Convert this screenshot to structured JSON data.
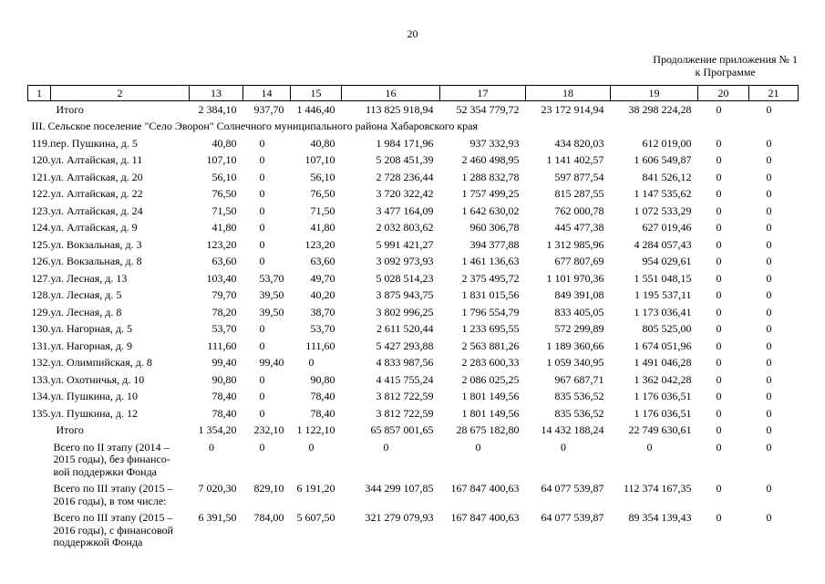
{
  "page": {
    "number": "20",
    "continuation_line1": "Продолжение приложения № 1",
    "continuation_line2": "к Программе"
  },
  "table": {
    "header": [
      "1",
      "2",
      "13",
      "14",
      "15",
      "16",
      "17",
      "18",
      "19",
      "20",
      "21"
    ],
    "rows": [
      {
        "type": "itogo",
        "label": "Итого",
        "values": [
          "2 384,10",
          "937,70",
          "1 446,40",
          "113 825 918,94",
          "52 354 779,72",
          "23 172 914,94",
          "38 298 224,28",
          "0",
          "0"
        ]
      },
      {
        "type": "section",
        "label": "III. Сельское поселение \"Село Эворон\" Солнечного муниципального района Хабаровского края"
      },
      {
        "type": "address",
        "label": "119.пер. Пушкина, д. 5",
        "values": [
          "40,80",
          "0",
          "40,80",
          "1 984 171,96",
          "937 332,93",
          "434 820,03",
          "612 019,00",
          "0",
          "0"
        ]
      },
      {
        "type": "address",
        "label": "120.ул. Алтайская, д. 11",
        "values": [
          "107,10",
          "0",
          "107,10",
          "5 208 451,39",
          "2 460 498,95",
          "1 141 402,57",
          "1 606 549,87",
          "0",
          "0"
        ]
      },
      {
        "type": "address",
        "label": "121.ул. Алтайская, д. 20",
        "values": [
          "56,10",
          "0",
          "56,10",
          "2 728 236,44",
          "1 288 832,78",
          "597 877,54",
          "841 526,12",
          "0",
          "0"
        ]
      },
      {
        "type": "address",
        "label": "122.ул. Алтайская, д. 22",
        "values": [
          "76,50",
          "0",
          "76,50",
          "3 720 322,42",
          "1 757 499,25",
          "815 287,55",
          "1 147 535,62",
          "0",
          "0"
        ]
      },
      {
        "type": "address",
        "label": "123.ул. Алтайская, д. 24",
        "values": [
          "71,50",
          "0",
          "71,50",
          "3 477 164,09",
          "1 642 630,02",
          "762 000,78",
          "1 072 533,29",
          "0",
          "0"
        ]
      },
      {
        "type": "address",
        "label": "124.ул. Алтайская, д. 9",
        "values": [
          "41,80",
          "0",
          "41,80",
          "2 032 803,62",
          "960 306,78",
          "445 477,38",
          "627 019,46",
          "0",
          "0"
        ]
      },
      {
        "type": "address",
        "label": "125.ул. Вокзальная, д. 3",
        "values": [
          "123,20",
          "0",
          "123,20",
          "5 991 421,27",
          "394 377,88",
          "1 312 985,96",
          "4 284 057,43",
          "0",
          "0"
        ]
      },
      {
        "type": "address",
        "label": "126.ул. Вокзальная, д. 8",
        "values": [
          "63,60",
          "0",
          "63,60",
          "3 092 973,93",
          "1 461 136,63",
          "677 807,69",
          "954 029,61",
          "0",
          "0"
        ]
      },
      {
        "type": "address",
        "label": "127.ул. Лесная, д. 13",
        "values": [
          "103,40",
          "53,70",
          "49,70",
          "5 028 514,23",
          "2 375 495,72",
          "1 101 970,36",
          "1 551 048,15",
          "0",
          "0"
        ]
      },
      {
        "type": "address",
        "label": "128.ул. Лесная, д. 5",
        "values": [
          "79,70",
          "39,50",
          "40,20",
          "3 875 943,75",
          "1 831 015,56",
          "849 391,08",
          "1 195 537,11",
          "0",
          "0"
        ]
      },
      {
        "type": "address",
        "label": "129.ул. Лесная, д. 8",
        "values": [
          "78,20",
          "39,50",
          "38,70",
          "3 802 996,25",
          "1 796 554,79",
          "833 405,05",
          "1 173 036,41",
          "0",
          "0"
        ]
      },
      {
        "type": "address",
        "label": "130.ул. Нагорная, д. 5",
        "values": [
          "53,70",
          "0",
          "53,70",
          "2 611 520,44",
          "1 233 695,55",
          "572 299,89",
          "805 525,00",
          "0",
          "0"
        ]
      },
      {
        "type": "address",
        "label": "131.ул. Нагорная, д. 9",
        "values": [
          "111,60",
          "0",
          "111,60",
          "5 427 293,88",
          "2 563 881,26",
          "1 189 360,66",
          "1 674 051,96",
          "0",
          "0"
        ]
      },
      {
        "type": "address",
        "label": "132.ул. Олимпийская, д. 8",
        "values": [
          "99,40",
          "99,40",
          "0",
          "4 833 987,56",
          "2 283 600,33",
          "1 059 340,95",
          "1 491 046,28",
          "0",
          "0"
        ]
      },
      {
        "type": "address",
        "label": "133.ул. Охотничья, д. 10",
        "values": [
          "90,80",
          "0",
          "90,80",
          "4 415 755,24",
          "2 086 025,25",
          "967 687,71",
          "1 362 042,28",
          "0",
          "0"
        ]
      },
      {
        "type": "address",
        "label": "134.ул. Пушкина, д. 10",
        "values": [
          "78,40",
          "0",
          "78,40",
          "3 812 722,59",
          "1 801 149,56",
          "835 536,52",
          "1 176 036,51",
          "0",
          "0"
        ]
      },
      {
        "type": "address",
        "label": "135.ул. Пушкина, д. 12",
        "values": [
          "78,40",
          "0",
          "78,40",
          "3 812 722,59",
          "1 801 149,56",
          "835 536,52",
          "1 176 036,51",
          "0",
          "0"
        ]
      },
      {
        "type": "itogo",
        "label": "Итого",
        "values": [
          "1 354,20",
          "232,10",
          "1 122,10",
          "65 857 001,65",
          "28 675 182,80",
          "14 432 188,24",
          "22 749 630,61",
          "0",
          "0"
        ]
      },
      {
        "type": "summary",
        "label": "Всего по II этапу (2014 –\n2015 годы), без финансо-\nвой поддержки Фонда",
        "values": [
          "0",
          "0",
          "0",
          "0",
          "0",
          "0",
          "0",
          "0",
          "0"
        ]
      },
      {
        "type": "summary",
        "label": "Всего по III этапу (2015 –\n2016 годы), в том числе:",
        "values": [
          "7 020,30",
          "829,10",
          "6 191,20",
          "344 299 107,85",
          "167 847 400,63",
          "64 077 539,87",
          "112 374 167,35",
          "0",
          "0"
        ]
      },
      {
        "type": "summary",
        "label": "Всего по III этапу (2015 –\n2016 годы), с финансовой\nподдержкой Фонда",
        "values": [
          "6 391,50",
          "784,00",
          "5 607,50",
          "321 279 079,93",
          "167 847 400,63",
          "64 077 539,87",
          "89 354 139,43",
          "0",
          "0"
        ]
      }
    ]
  }
}
